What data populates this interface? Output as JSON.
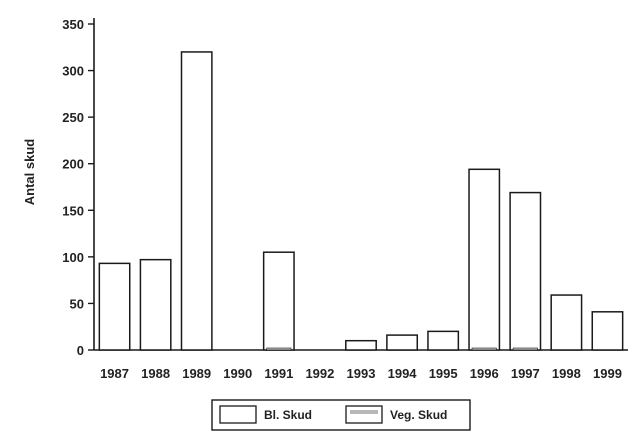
{
  "chart_data": {
    "type": "bar",
    "ylabel": "Antal skud",
    "xlabel": "",
    "ylim": [
      0,
      350
    ],
    "yticks": [
      0,
      50,
      100,
      150,
      200,
      250,
      300,
      350
    ],
    "grid": false,
    "legend_position": "bottom-center",
    "categories": [
      "1987",
      "1988",
      "1989",
      "1990",
      "1991",
      "1992",
      "1993",
      "1994",
      "1995",
      "1996",
      "1997",
      "1998",
      "1999"
    ],
    "series": [
      {
        "name": "Bl. Skud",
        "values": [
          93,
          97,
          320,
          0,
          105,
          0,
          10,
          16,
          20,
          194,
          169,
          59,
          41
        ]
      },
      {
        "name": "Veg. Skud",
        "values": [
          0,
          0,
          0,
          0,
          1,
          0,
          0,
          0,
          0,
          1,
          1,
          0,
          0
        ]
      }
    ],
    "colors": {
      "bl_skud": "#ffffff",
      "veg_skud": "#b8b8b8",
      "stroke": "#1a1a1a"
    }
  }
}
